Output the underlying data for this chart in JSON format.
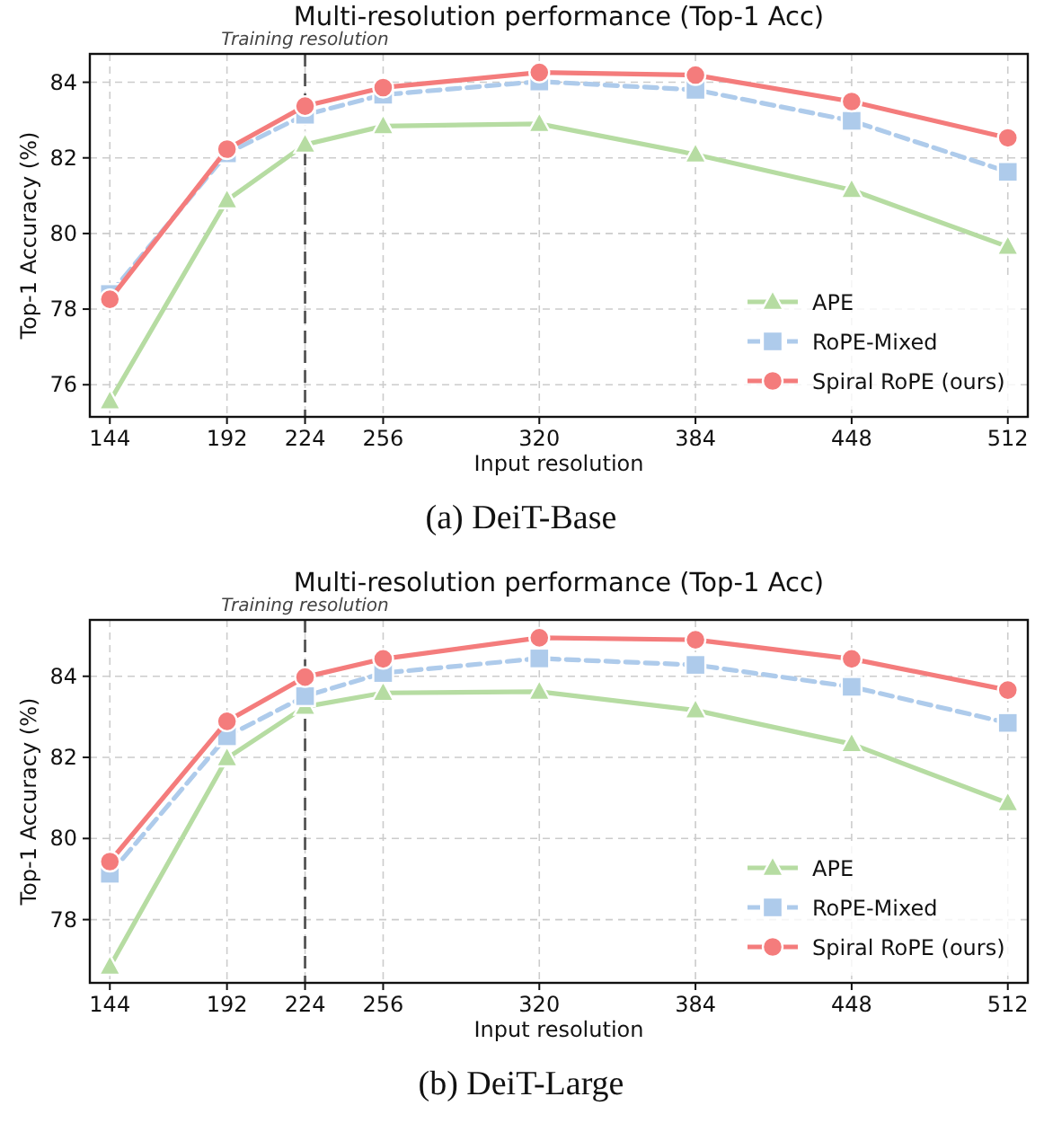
{
  "chart_data": [
    {
      "type": "line",
      "title": "Multi-resolution performance (Top-1 Acc)",
      "xlabel": "Input resolution",
      "ylabel": "Top-1 Accuracy (%)",
      "x": [
        144,
        192,
        224,
        256,
        320,
        384,
        448,
        512
      ],
      "xlim": [
        135.8,
        520.2
      ],
      "xticks": [
        144,
        192,
        224,
        256,
        320,
        384,
        448,
        512
      ],
      "ylim": [
        75.15,
        84.75
      ],
      "yticks": [
        76,
        78,
        80,
        82,
        84
      ],
      "grid": true,
      "legend": "bottom right",
      "ref_lines": [
        {
          "axis": "x",
          "value": 224,
          "label": "Training resolution",
          "color": "#555555",
          "line_style": "dashed"
        }
      ],
      "annotations": [
        "(a) DeiT-Base"
      ],
      "series": [
        {
          "name": "APE",
          "color": "#b6dca2",
          "marker": "triangle",
          "line_style": "solid",
          "values": [
            75.56,
            80.88,
            82.35,
            82.84,
            82.9,
            82.09,
            81.15,
            79.65
          ]
        },
        {
          "name": "RoPE-Mixed",
          "color": "#aecbeb",
          "marker": "square",
          "line_style": "dashed",
          "values": [
            78.4,
            82.12,
            83.14,
            83.67,
            84.02,
            83.8,
            82.98,
            81.63
          ]
        },
        {
          "name": "Spiral RoPE (ours)",
          "color": "#f47c7c",
          "marker": "circle",
          "line_style": "solid",
          "values": [
            78.26,
            82.23,
            83.37,
            83.86,
            84.26,
            84.19,
            83.49,
            82.53
          ]
        }
      ]
    },
    {
      "type": "line",
      "title": "Multi-resolution performance (Top-1 Acc)",
      "xlabel": "Input resolution",
      "ylabel": "Top-1 Accuracy (%)",
      "x": [
        144,
        192,
        224,
        256,
        320,
        384,
        448,
        512
      ],
      "xlim": [
        135.8,
        520.2
      ],
      "xticks": [
        144,
        192,
        224,
        256,
        320,
        384,
        448,
        512
      ],
      "ylim": [
        76.44,
        85.39
      ],
      "yticks": [
        78,
        80,
        82,
        84
      ],
      "grid": true,
      "legend": "bottom right",
      "ref_lines": [
        {
          "axis": "x",
          "value": 224,
          "label": "Training resolution",
          "color": "#555555",
          "line_style": "dashed"
        }
      ],
      "annotations": [
        "(b) DeiT-Large"
      ],
      "series": [
        {
          "name": "APE",
          "color": "#b6dca2",
          "marker": "triangle",
          "line_style": "solid",
          "values": [
            76.84,
            81.98,
            83.25,
            83.59,
            83.62,
            83.16,
            82.33,
            80.87
          ]
        },
        {
          "name": "RoPE-Mixed",
          "color": "#aecbeb",
          "marker": "square",
          "line_style": "dashed",
          "values": [
            79.13,
            82.52,
            83.51,
            84.08,
            84.44,
            84.28,
            83.74,
            82.85
          ]
        },
        {
          "name": "Spiral RoPE (ours)",
          "color": "#f47c7c",
          "marker": "circle",
          "line_style": "solid",
          "values": [
            79.43,
            82.89,
            83.98,
            84.43,
            84.95,
            84.9,
            84.43,
            83.66
          ]
        }
      ]
    }
  ]
}
